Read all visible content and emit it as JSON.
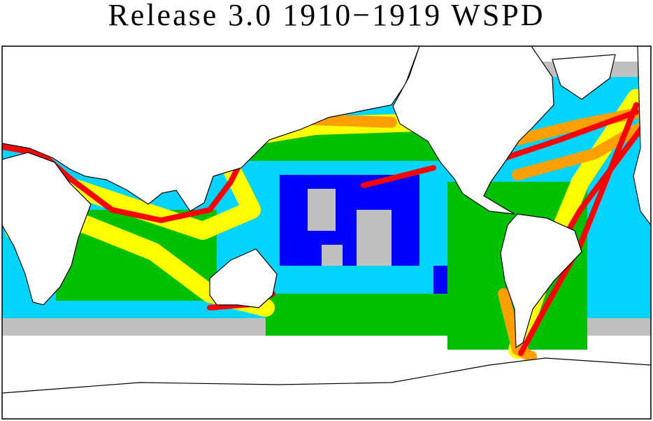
{
  "header": {
    "title": "Release 3.0 1910−1919 WSPD"
  }
}
